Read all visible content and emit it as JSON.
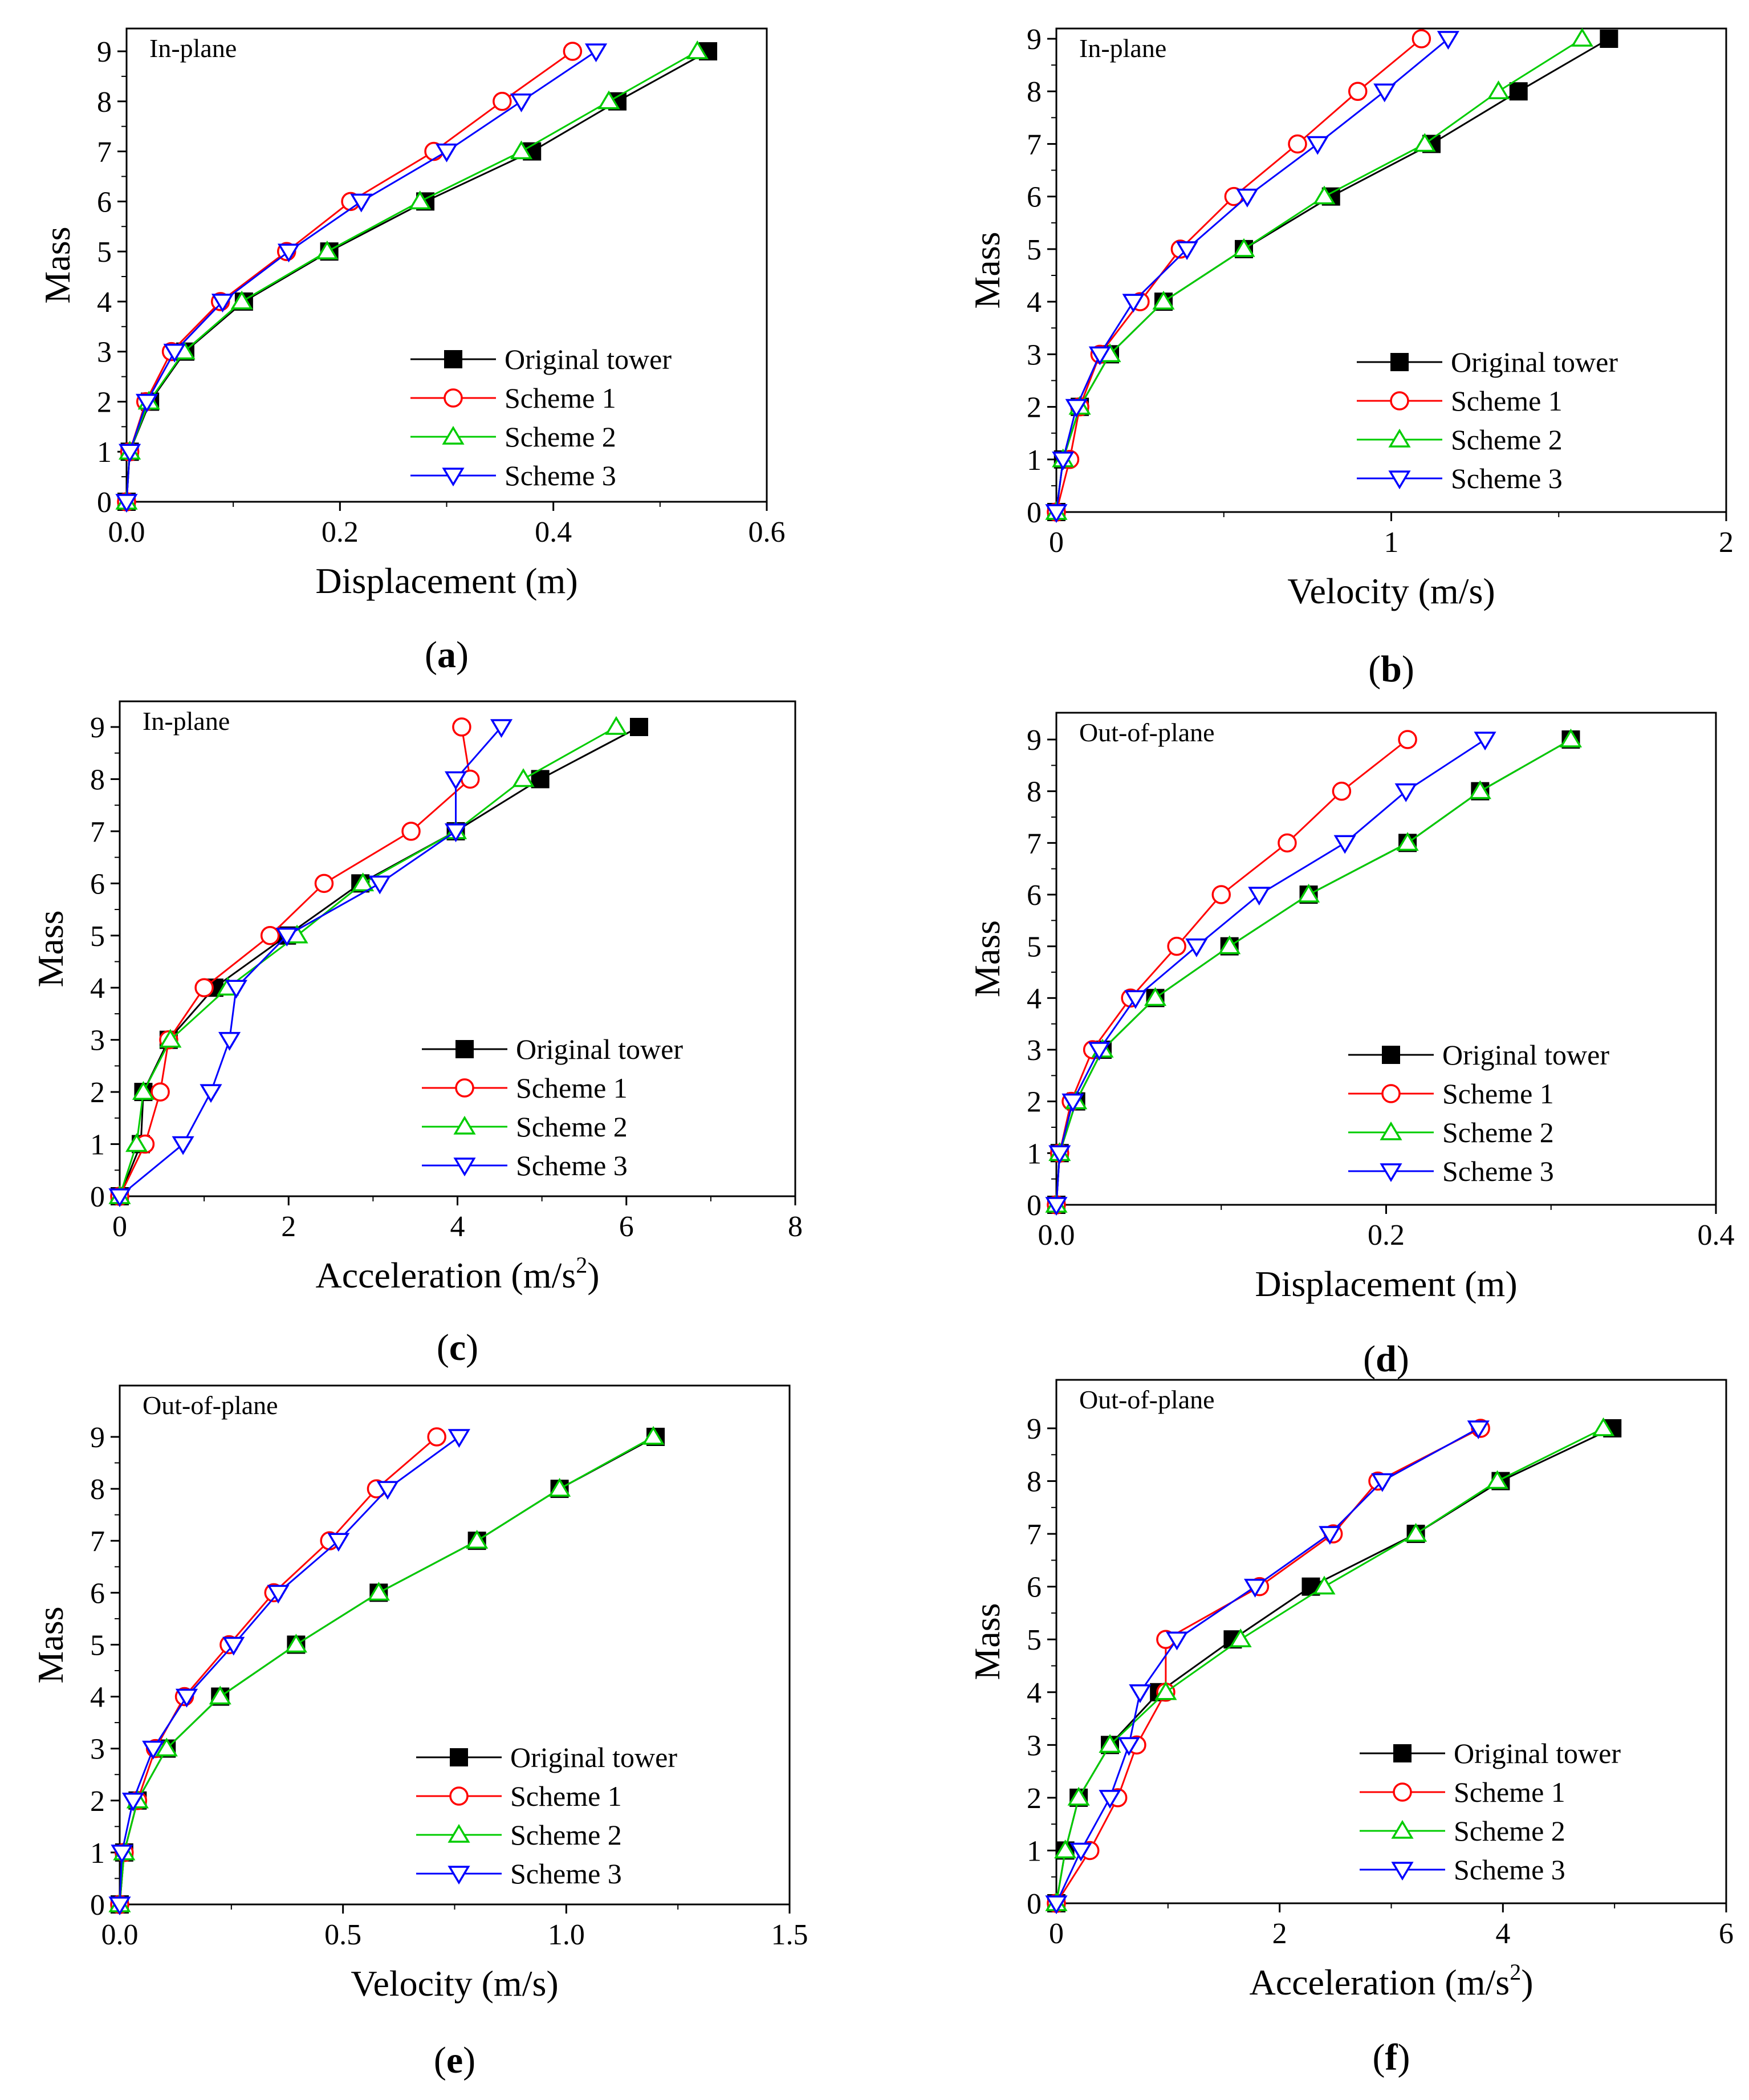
{
  "figure": {
    "legend": [
      "Original tower",
      "Scheme 1",
      "Scheme 2",
      "Scheme 3"
    ],
    "series_colors": [
      "#000000",
      "#ff0000",
      "#00cc00",
      "#0000ff"
    ],
    "series_markers": [
      "square-filled",
      "circle-open",
      "triangle-up-open",
      "triangle-down-open"
    ]
  },
  "chart_data": [
    {
      "type": "line",
      "caption": "a",
      "title": "In-plane",
      "xlabel": "Displacement (m)",
      "ylabel": "Mass",
      "xlim": [
        0,
        0.6
      ],
      "ylim": [
        0,
        9
      ],
      "xticks": [
        "0.0",
        "0.2",
        "0.4",
        "0.6"
      ],
      "yticks": [
        "0",
        "1",
        "2",
        "3",
        "4",
        "5",
        "6",
        "7",
        "8",
        "9"
      ],
      "y": [
        0,
        1,
        2,
        3,
        4,
        5,
        6,
        7,
        8,
        9
      ],
      "series": [
        {
          "name": "Original tower",
          "x": [
            0,
            0.003,
            0.022,
            0.055,
            0.11,
            0.19,
            0.28,
            0.38,
            0.46,
            0.545
          ]
        },
        {
          "name": "Scheme 1",
          "x": [
            0,
            0.003,
            0.018,
            0.042,
            0.088,
            0.15,
            0.21,
            0.288,
            0.352,
            0.418
          ]
        },
        {
          "name": "Scheme 2",
          "x": [
            0,
            0.003,
            0.021,
            0.054,
            0.108,
            0.188,
            0.275,
            0.37,
            0.452,
            0.535
          ]
        },
        {
          "name": "Scheme 3",
          "x": [
            0,
            0.003,
            0.019,
            0.045,
            0.09,
            0.152,
            0.22,
            0.3,
            0.37,
            0.44
          ]
        }
      ]
    },
    {
      "type": "line",
      "caption": "b",
      "title": "In-plane",
      "xlabel": "Velocity (m/s)",
      "ylabel": "Mass",
      "xlim": [
        0,
        2
      ],
      "ylim": [
        0,
        9
      ],
      "xticks": [
        "0",
        "1",
        "2"
      ],
      "yticks": [
        "0",
        "1",
        "2",
        "3",
        "4",
        "5",
        "6",
        "7",
        "8",
        "9"
      ],
      "y": [
        0,
        1,
        2,
        3,
        4,
        5,
        6,
        7,
        8,
        9
      ],
      "series": [
        {
          "name": "Original tower",
          "x": [
            0,
            0.02,
            0.07,
            0.16,
            0.32,
            0.56,
            0.82,
            1.12,
            1.38,
            1.65
          ]
        },
        {
          "name": "Scheme 1",
          "x": [
            0,
            0.04,
            0.07,
            0.13,
            0.25,
            0.37,
            0.53,
            0.72,
            0.9,
            1.09
          ]
        },
        {
          "name": "Scheme 2",
          "x": [
            0,
            0.02,
            0.07,
            0.16,
            0.32,
            0.56,
            0.8,
            1.1,
            1.32,
            1.57
          ]
        },
        {
          "name": "Scheme 3",
          "x": [
            0,
            0.02,
            0.06,
            0.13,
            0.23,
            0.39,
            0.57,
            0.78,
            0.98,
            1.17
          ]
        }
      ]
    },
    {
      "type": "line",
      "caption": "c",
      "title": "In-plane",
      "xlabel": "Acceleration (m/s",
      "xlabel_sup": "2",
      "xlabel_end": ")",
      "ylabel": "Mass",
      "xlim": [
        0,
        8
      ],
      "ylim": [
        0,
        9
      ],
      "xticks": [
        "0",
        "2",
        "4",
        "6",
        "8"
      ],
      "yticks": [
        "0",
        "1",
        "2",
        "3",
        "4",
        "5",
        "6",
        "7",
        "8",
        "9"
      ],
      "y": [
        0,
        1,
        2,
        3,
        4,
        5,
        6,
        7,
        8,
        9
      ],
      "series": [
        {
          "name": "Original tower",
          "x": [
            0,
            0.25,
            0.28,
            0.58,
            1.12,
            1.98,
            2.85,
            3.98,
            4.98,
            6.15
          ]
        },
        {
          "name": "Scheme 1",
          "x": [
            0,
            0.3,
            0.48,
            0.58,
            1.0,
            1.78,
            2.42,
            3.45,
            4.15,
            4.05
          ]
        },
        {
          "name": "Scheme 2",
          "x": [
            0,
            0.2,
            0.28,
            0.6,
            1.28,
            2.1,
            2.88,
            3.98,
            4.78,
            5.88
          ]
        },
        {
          "name": "Scheme 3",
          "x": [
            0,
            0.75,
            1.08,
            1.3,
            1.38,
            1.98,
            3.08,
            3.98,
            3.98,
            4.52
          ]
        }
      ]
    },
    {
      "type": "line",
      "caption": "d",
      "title": "Out-of-plane",
      "xlabel": "Displacement (m)",
      "ylabel": "Mass",
      "xlim": [
        0,
        0.4
      ],
      "ylim": [
        0,
        9
      ],
      "xticks": [
        "0.0",
        "0.2",
        "0.4"
      ],
      "yticks": [
        "0",
        "1",
        "2",
        "3",
        "4",
        "5",
        "6",
        "7",
        "8",
        "9"
      ],
      "y": [
        0,
        1,
        2,
        3,
        4,
        5,
        6,
        7,
        8,
        9
      ],
      "series": [
        {
          "name": "Original tower",
          "x": [
            0,
            0.002,
            0.012,
            0.028,
            0.06,
            0.105,
            0.153,
            0.213,
            0.257,
            0.312
          ]
        },
        {
          "name": "Scheme 1",
          "x": [
            0,
            0.002,
            0.009,
            0.022,
            0.045,
            0.073,
            0.1,
            0.14,
            0.173,
            0.213
          ]
        },
        {
          "name": "Scheme 2",
          "x": [
            0,
            0.002,
            0.012,
            0.028,
            0.06,
            0.105,
            0.153,
            0.213,
            0.257,
            0.312
          ]
        },
        {
          "name": "Scheme 3",
          "x": [
            0,
            0.002,
            0.01,
            0.026,
            0.048,
            0.085,
            0.123,
            0.175,
            0.212,
            0.26
          ]
        }
      ]
    },
    {
      "type": "line",
      "caption": "e",
      "title": "Out-of-plane",
      "xlabel": "Velocity (m/s)",
      "ylabel": "Mass",
      "xlim": [
        0,
        1.5
      ],
      "ylim": [
        0,
        9
      ],
      "xticks": [
        "0.0",
        "0.5",
        "1.0",
        "1.5"
      ],
      "yticks": [
        "0",
        "1",
        "2",
        "3",
        "4",
        "5",
        "6",
        "7",
        "8",
        "9"
      ],
      "y": [
        0,
        1,
        2,
        3,
        4,
        5,
        6,
        7,
        8,
        9
      ],
      "series": [
        {
          "name": "Original tower",
          "x": [
            0,
            0.01,
            0.04,
            0.105,
            0.225,
            0.395,
            0.58,
            0.8,
            0.985,
            1.2
          ]
        },
        {
          "name": "Scheme 1",
          "x": [
            0,
            0.01,
            0.04,
            0.08,
            0.145,
            0.245,
            0.345,
            0.47,
            0.575,
            0.71
          ]
        },
        {
          "name": "Scheme 2",
          "x": [
            0,
            0.01,
            0.04,
            0.105,
            0.225,
            0.395,
            0.58,
            0.8,
            0.985,
            1.195
          ]
        },
        {
          "name": "Scheme 3",
          "x": [
            0,
            0.005,
            0.03,
            0.075,
            0.15,
            0.255,
            0.355,
            0.49,
            0.6,
            0.76
          ]
        }
      ]
    },
    {
      "type": "line",
      "caption": "f",
      "title": "Out-of-plane",
      "xlabel": "Acceleration (m/s",
      "xlabel_sup": "2",
      "xlabel_end": ")",
      "ylabel": "Mass",
      "xlim": [
        0,
        6
      ],
      "ylim": [
        0,
        9
      ],
      "xticks": [
        "0",
        "2",
        "4",
        "6"
      ],
      "yticks": [
        "0",
        "1",
        "2",
        "3",
        "4",
        "5",
        "6",
        "7",
        "8",
        "9"
      ],
      "y": [
        0,
        1,
        2,
        3,
        4,
        5,
        6,
        7,
        8,
        9
      ],
      "series": [
        {
          "name": "Original tower",
          "x": [
            0,
            0.08,
            0.2,
            0.48,
            0.92,
            1.58,
            2.28,
            3.22,
            3.98,
            4.98
          ]
        },
        {
          "name": "Scheme 1",
          "x": [
            0,
            0.3,
            0.55,
            0.72,
            0.98,
            0.98,
            1.82,
            2.48,
            2.88,
            3.8
          ]
        },
        {
          "name": "Scheme 2",
          "x": [
            0,
            0.08,
            0.2,
            0.48,
            0.98,
            1.65,
            2.4,
            3.22,
            3.95,
            4.9
          ]
        },
        {
          "name": "Scheme 3",
          "x": [
            0,
            0.22,
            0.48,
            0.65,
            0.75,
            1.08,
            1.78,
            2.45,
            2.92,
            3.78
          ]
        }
      ]
    }
  ]
}
